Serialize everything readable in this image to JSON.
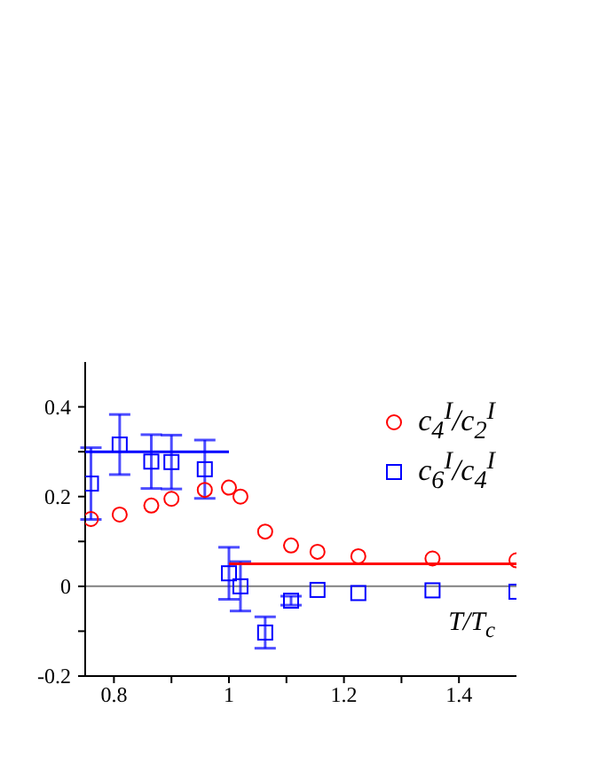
{
  "chart_data": {
    "type": "scatter",
    "xlabel": "T/T$_{c}$",
    "xlim": [
      0.75,
      1.5
    ],
    "ylim": [
      -0.2,
      0.5
    ],
    "xticks": [
      0.8,
      {
        "value": 0.9,
        "label": null
      },
      1,
      {
        "value": 1.1,
        "label": null
      },
      1.2,
      {
        "value": 1.3,
        "label": null
      },
      1.4
    ],
    "yticks": [
      -0.2,
      {
        "value": -0.1,
        "label": null
      },
      0,
      {
        "value": 0.1,
        "label": null
      },
      0.2,
      {
        "value": 0.3,
        "label": null
      },
      0.4
    ],
    "grid": false,
    "legend": "top right",
    "ref_lines": [
      {
        "axis": "y",
        "value": 0,
        "color": "#808080"
      }
    ],
    "series": [
      {
        "name": "c$_{4}$$^{I}$/c$_{2}$$^{I}$",
        "marker": "circle",
        "color": "#ff0000",
        "x": [
          0.76,
          0.81,
          0.865,
          0.9,
          0.958,
          1.0,
          1.02,
          1.063,
          1.108,
          1.154,
          1.225,
          1.354,
          1.5
        ],
        "values": [
          0.15,
          0.16,
          0.18,
          0.195,
          0.215,
          0.22,
          0.2,
          0.122,
          0.091,
          0.077,
          0.067,
          0.062,
          0.058
        ]
      },
      {
        "name": "c$_{6}$$^{I}$/c$_{4}$$^{I}$",
        "marker": "square",
        "color": "#0000ff",
        "x": [
          0.76,
          0.81,
          0.865,
          0.9,
          0.958,
          1.0,
          1.02,
          1.063,
          1.108,
          1.154,
          1.225,
          1.354,
          1.5
        ],
        "values": [
          0.229,
          0.316,
          0.278,
          0.277,
          0.261,
          0.029,
          0.0,
          -0.103,
          -0.032,
          -0.008,
          -0.015,
          -0.009,
          -0.012
        ],
        "errors": [
          0.08,
          0.067,
          0.06,
          0.06,
          0.065,
          0.058,
          0.055,
          0.035,
          0.01,
          null,
          null,
          null,
          null
        ]
      },
      {
        "type": "line",
        "color": "#0000ff",
        "x": [
          0.75,
          1.0
        ],
        "values": [
          0.3,
          0.3
        ]
      },
      {
        "type": "line",
        "color": "#ff0000",
        "x": [
          1.0,
          1.5
        ],
        "values": [
          0.05,
          0.05
        ]
      }
    ]
  }
}
